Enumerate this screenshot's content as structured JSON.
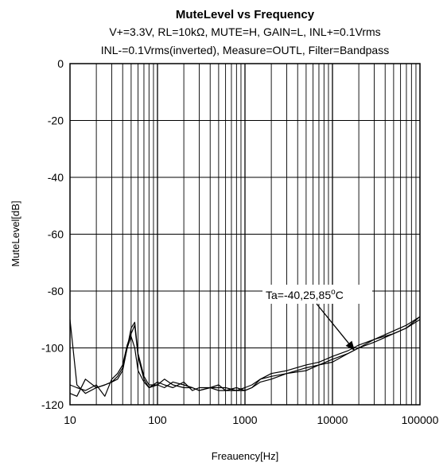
{
  "chart_data": {
    "type": "line",
    "title": "MuteLevel vs Frequency",
    "subtitle_lines": [
      "V+=3.3V, RL=10kΩ, MUTE=H, GAIN=L, INL+=0.1Vrms",
      "INL-=0.1Vrms(inverted), Measure=OUTL, Filter=Bandpass"
    ],
    "xlabel": "Freauency[Hz]",
    "ylabel": "MuteLevel[dB]",
    "x_scale": "log",
    "xlim": [
      10,
      100000
    ],
    "ylim": [
      -120,
      0
    ],
    "x_ticks": [
      10,
      100,
      1000,
      10000,
      100000
    ],
    "x_tick_labels": [
      "10",
      "100",
      "1000",
      "10000",
      "100000"
    ],
    "y_ticks": [
      0,
      -20,
      -40,
      -60,
      -80,
      -100,
      -120
    ],
    "y_tick_labels": [
      "0",
      "-20",
      "-40",
      "-60",
      "-80",
      "-100",
      "-120"
    ],
    "grid": true,
    "line_color": "#000000",
    "annotation": {
      "label": "Ta=-40,25,85",
      "superscript": "o",
      "unit": "C",
      "arrow_target": [
        18000,
        -101
      ]
    },
    "series": [
      {
        "x": [
          10,
          12,
          15,
          20,
          25,
          30,
          35,
          40,
          45,
          50,
          55,
          60,
          70,
          80,
          100,
          120,
          150,
          200,
          250,
          300,
          400,
          500,
          600,
          800,
          1000,
          1200,
          1500,
          2000,
          3000,
          5000,
          7000,
          10000,
          15000,
          20000,
          30000,
          50000,
          70000,
          100000
        ],
        "y": [
          -90,
          -113,
          -116,
          -114,
          -113,
          -112,
          -110,
          -107,
          -100,
          -93,
          -91,
          -102,
          -110,
          -113,
          -113,
          -111,
          -113,
          -114,
          -114,
          -115,
          -114,
          -115,
          -115,
          -114,
          -115,
          -114,
          -111,
          -110,
          -109,
          -107,
          -106,
          -104,
          -102,
          -100,
          -98,
          -95,
          -93,
          -89
        ]
      },
      {
        "x": [
          10,
          12,
          15,
          20,
          25,
          30,
          35,
          40,
          45,
          50,
          55,
          60,
          70,
          80,
          100,
          120,
          150,
          200,
          250,
          300,
          400,
          500,
          600,
          800,
          1000,
          1200,
          1500,
          2000,
          3000,
          5000,
          7000,
          10000,
          15000,
          20000,
          30000,
          50000,
          70000,
          100000
        ],
        "y": [
          -113,
          -114,
          -115,
          -113,
          -117,
          -111,
          -109,
          -106,
          -99,
          -95,
          -92,
          -103,
          -111,
          -114,
          -112,
          -113,
          -114,
          -112,
          -115,
          -114,
          -114,
          -113,
          -115,
          -115,
          -114,
          -113,
          -111,
          -109,
          -108,
          -106,
          -105,
          -103,
          -101,
          -99,
          -97,
          -94,
          -92,
          -89
        ]
      },
      {
        "x": [
          10,
          12,
          15,
          20,
          25,
          30,
          35,
          40,
          45,
          50,
          55,
          60,
          70,
          80,
          100,
          120,
          150,
          200,
          250,
          300,
          400,
          500,
          600,
          800,
          1000,
          1200,
          1500,
          2000,
          3000,
          5000,
          7000,
          10000,
          15000,
          20000,
          30000,
          50000,
          70000,
          100000
        ],
        "y": [
          -116,
          -117,
          -111,
          -114,
          -113,
          -112,
          -111,
          -108,
          -100,
          -96,
          -100,
          -108,
          -112,
          -114,
          -113,
          -114,
          -112,
          -113,
          -114,
          -115,
          -114,
          -114,
          -114,
          -115,
          -115,
          -114,
          -112,
          -111,
          -109,
          -108,
          -106,
          -105,
          -102,
          -100,
          -97,
          -95,
          -93,
          -90
        ]
      }
    ]
  }
}
